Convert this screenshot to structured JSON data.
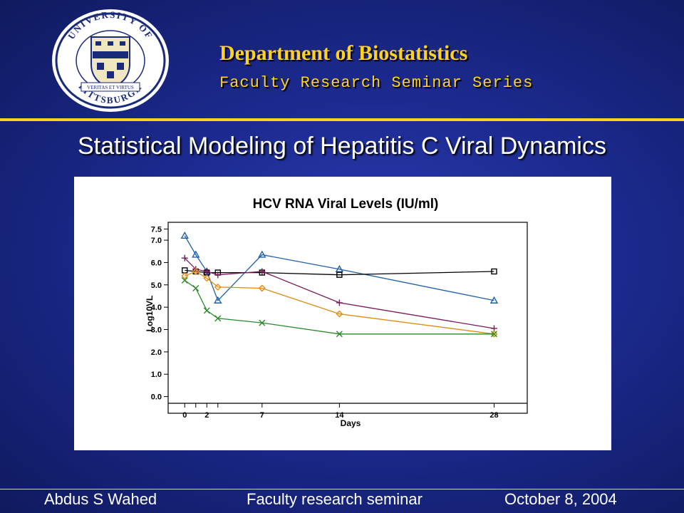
{
  "header": {
    "title": "Department of Biostatistics",
    "subtitle": "Faculty Research Seminar Series",
    "seal_top_text": "UNIVERSITY OF",
    "seal_bottom_text": "PITTSBURGH",
    "seal_motto": "VERITAS ET VIRTUS"
  },
  "slide": {
    "title": "Statistical Modeling of Hepatitis C Viral Dynamics"
  },
  "footer": {
    "author": "Abdus S Wahed",
    "event": "Faculty research seminar",
    "date": "October 8, 2004"
  },
  "colors": {
    "accent": "#ffd21f",
    "background": "#1c2a8f"
  },
  "chart_data": {
    "type": "line",
    "title": "HCV RNA Viral Levels (IU/ml)",
    "xlabel": "Days",
    "ylabel": "Log10VL",
    "x_tick_labels": [
      "0",
      "2",
      "7",
      "14",
      "28"
    ],
    "x_ticks": [
      0,
      2,
      7,
      14,
      28
    ],
    "y_ticks": [
      0.0,
      1.0,
      2.0,
      3.0,
      4.0,
      5.0,
      6.0,
      7.0,
      7.5
    ],
    "y_tick_labels": [
      "0.0",
      "1.0",
      "2.0",
      "3.0",
      "4.0",
      "5.0",
      "6.0",
      "7.0",
      "7.5"
    ],
    "xlim": [
      -1.5,
      31
    ],
    "ylim": [
      -0.3,
      7.8
    ],
    "grid": false,
    "legend": false,
    "series": [
      {
        "marker": "triangle",
        "color": "#1f5fa8",
        "x": [
          0,
          1,
          2,
          3,
          7,
          14,
          28
        ],
        "y": [
          7.2,
          6.35,
          5.6,
          4.3,
          6.35,
          5.7,
          4.3
        ]
      },
      {
        "marker": "square",
        "color": "#000000",
        "x": [
          0,
          1,
          2,
          3,
          7,
          14,
          28
        ],
        "y": [
          5.65,
          5.6,
          5.55,
          5.55,
          5.55,
          5.45,
          5.6
        ]
      },
      {
        "marker": "plus",
        "color": "#7a1a5c",
        "x": [
          0,
          1,
          2,
          3,
          7,
          14,
          28
        ],
        "y": [
          6.2,
          5.7,
          5.6,
          5.45,
          5.6,
          4.2,
          3.05
        ]
      },
      {
        "marker": "diamond",
        "color": "#e08a10",
        "x": [
          0,
          1,
          2,
          3,
          7,
          14,
          28
        ],
        "y": [
          5.4,
          5.6,
          5.3,
          4.9,
          4.85,
          3.7,
          2.8
        ]
      },
      {
        "marker": "x",
        "color": "#2a8a2a",
        "x": [
          0,
          1,
          2,
          3,
          7,
          14,
          28
        ],
        "y": [
          5.2,
          4.85,
          3.85,
          3.5,
          3.3,
          2.8,
          2.8
        ]
      }
    ]
  }
}
